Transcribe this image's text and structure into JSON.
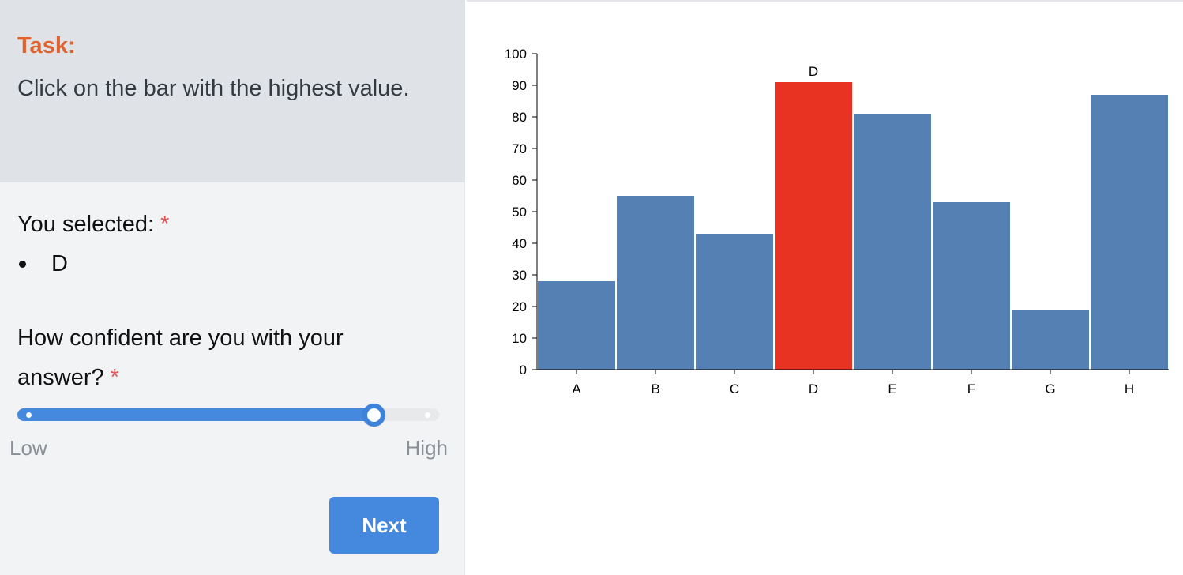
{
  "task": {
    "title": "Task:",
    "text": "Click on the bar with the highest value."
  },
  "selection": {
    "label": "You selected:",
    "required_marker": "*",
    "items": [
      "D"
    ]
  },
  "confidence": {
    "label": "How confident are you with your answer?",
    "required_marker": "*",
    "low_label": "Low",
    "high_label": "High",
    "value_fraction": 0.86
  },
  "next_button": {
    "label": "Next"
  },
  "colors": {
    "accent": "#4589de",
    "task_title": "#e0622e",
    "bar_default": "#5580b3",
    "bar_selected": "#e83323",
    "required": "#e05555"
  },
  "chart_data": {
    "type": "bar",
    "categories": [
      "A",
      "B",
      "C",
      "D",
      "E",
      "F",
      "G",
      "H"
    ],
    "values": [
      28,
      55,
      43,
      91,
      81,
      53,
      19,
      87
    ],
    "selected": "D",
    "selected_label": "D",
    "ylim": [
      0,
      100
    ],
    "yticks": [
      0,
      10,
      20,
      30,
      40,
      50,
      60,
      70,
      80,
      90,
      100
    ],
    "title": "",
    "xlabel": "",
    "ylabel": "",
    "grid": false
  }
}
